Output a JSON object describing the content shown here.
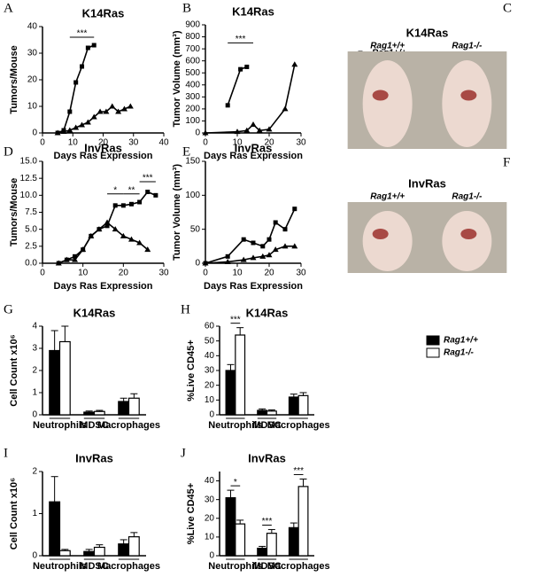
{
  "chart_data": [
    {
      "type": "line",
      "label": "A",
      "title": "K14Ras",
      "xlabel": "Days Ras Expression",
      "ylabel": "Tumors/Mouse",
      "xlim": [
        0,
        40
      ],
      "xticks": [
        0,
        10,
        20,
        30,
        40
      ],
      "ylim": [
        0,
        40
      ],
      "yticks": [
        0,
        10,
        20,
        30,
        40
      ],
      "annotations": [
        "***"
      ],
      "series": [
        {
          "name": "Rag1+/+",
          "marker": "square",
          "color": "#000000",
          "x": [
            5,
            7,
            9,
            11,
            13,
            15,
            17
          ],
          "values": [
            0,
            1,
            8,
            19,
            25,
            32,
            33
          ]
        },
        {
          "name": "Rag1-/-",
          "marker": "triangle",
          "color": "#000000",
          "x": [
            5,
            7,
            9,
            11,
            13,
            15,
            17,
            19,
            21,
            23,
            25,
            27,
            29
          ],
          "values": [
            0,
            0.5,
            1,
            2,
            3,
            4,
            6,
            8,
            8,
            10,
            8,
            9,
            10
          ]
        }
      ]
    },
    {
      "type": "line",
      "label": "B",
      "title": "K14Ras",
      "xlabel": "Days Ras Expression",
      "ylabel": "Tumor Volume (mm³)",
      "legend": true,
      "xlim": [
        0,
        30
      ],
      "xticks": [
        0,
        10,
        20,
        30
      ],
      "ylim": [
        0,
        900
      ],
      "yticks": [
        0,
        100,
        200,
        300,
        400,
        500,
        600,
        700,
        800,
        900
      ],
      "annotations": [
        "***"
      ],
      "series": [
        {
          "name": "Rag1+/+",
          "marker": "square",
          "color": "#000000",
          "x": [
            7,
            11,
            13
          ],
          "values": [
            230,
            530,
            550
          ]
        },
        {
          "name": "Rag1-/-",
          "marker": "triangle",
          "color": "#000000",
          "x": [
            0,
            10,
            13,
            15,
            17,
            20,
            25,
            28
          ],
          "values": [
            0,
            10,
            20,
            70,
            20,
            30,
            200,
            570
          ]
        }
      ]
    },
    {
      "type": "image",
      "label": "C",
      "title": "K14Ras",
      "columns": [
        "Rag1+/+",
        "Rag1-/-"
      ]
    },
    {
      "type": "line",
      "label": "D",
      "title": "InvRas",
      "xlabel": "Days Ras Expression",
      "ylabel": "Tumors/Mouse",
      "xlim": [
        0,
        30
      ],
      "xticks": [
        0,
        10,
        20,
        30
      ],
      "ylim": [
        0,
        15
      ],
      "yticks": [
        {
          "value": 0,
          "label": "0.0"
        },
        2.5,
        {
          "value": 5,
          "label": "5.0"
        },
        7.5,
        {
          "value": 10,
          "label": "10.0"
        },
        12.5,
        {
          "value": 15,
          "label": "15.0"
        }
      ],
      "annotations": [
        "*",
        "**",
        "***"
      ],
      "series": [
        {
          "name": "Rag1+/+",
          "marker": "square",
          "color": "#000000",
          "x": [
            4,
            6,
            8,
            10,
            12,
            14,
            16,
            18,
            20,
            22,
            24,
            26,
            28
          ],
          "values": [
            0,
            0.5,
            1,
            2,
            4,
            5,
            5.5,
            8.5,
            8.5,
            8.7,
            9,
            10.5,
            10
          ]
        },
        {
          "name": "Rag1-/-",
          "marker": "triangle",
          "color": "#000000",
          "x": [
            4,
            6,
            8,
            10,
            12,
            14,
            16,
            18,
            20,
            22,
            24,
            26
          ],
          "values": [
            0,
            0.5,
            0.5,
            2,
            4,
            5,
            6,
            5,
            4,
            3.5,
            3,
            2
          ]
        }
      ]
    },
    {
      "type": "line",
      "label": "E",
      "title": "InvRas",
      "xlabel": "Days Ras Expression",
      "ylabel": "Tumor Volume (mm³)",
      "xlim": [
        0,
        30
      ],
      "xticks": [
        0,
        10,
        20,
        30
      ],
      "ylim": [
        0,
        150
      ],
      "yticks": [
        0,
        50,
        100,
        150
      ],
      "series": [
        {
          "name": "Rag1+/+",
          "marker": "square",
          "color": "#000000",
          "x": [
            0,
            7,
            12,
            15,
            18,
            20,
            22,
            25,
            28
          ],
          "values": [
            0,
            10,
            35,
            30,
            25,
            35,
            60,
            50,
            80
          ]
        },
        {
          "name": "Rag1-/-",
          "marker": "triangle",
          "color": "#000000",
          "x": [
            0,
            7,
            12,
            15,
            18,
            20,
            22,
            25,
            28
          ],
          "values": [
            0,
            2,
            5,
            8,
            10,
            12,
            20,
            25,
            25
          ]
        }
      ]
    },
    {
      "type": "image",
      "label": "F",
      "title": "InvRas",
      "columns": [
        "Rag1+/+",
        "Rag1-/-"
      ]
    },
    {
      "type": "bar",
      "label": "G",
      "title": "K14Ras",
      "ylabel": "Cell Count x10⁶",
      "categories": [
        "Neutrophils",
        "MDSC",
        "Macrophages"
      ],
      "ylim": [
        0,
        4
      ],
      "yticks": [
        0,
        1,
        2,
        3,
        4
      ],
      "series": [
        {
          "name": "Rag1+/+",
          "color": "#000000",
          "values": [
            2.9,
            0.12,
            0.6
          ],
          "errors": [
            0.9,
            0.05,
            0.15
          ]
        },
        {
          "name": "Rag1-/-",
          "color": "#ffffff",
          "values": [
            3.3,
            0.15,
            0.75
          ],
          "errors": [
            0.7,
            0.05,
            0.2
          ]
        }
      ]
    },
    {
      "type": "bar",
      "label": "H",
      "title": "K14Ras",
      "ylabel": "%Live CD45+",
      "categories": [
        "Neutrophils",
        "MDSC",
        "Macrophages"
      ],
      "legend": true,
      "ylim": [
        0,
        60
      ],
      "yticks": [
        0,
        10,
        20,
        30,
        40,
        50,
        60
      ],
      "annotations": [
        "***"
      ],
      "series": [
        {
          "name": "Rag1+/+",
          "color": "#000000",
          "values": [
            30,
            3,
            12
          ],
          "errors": [
            4,
            1,
            2
          ]
        },
        {
          "name": "Rag1-/-",
          "color": "#ffffff",
          "values": [
            54,
            2.5,
            13
          ],
          "errors": [
            5,
            0.8,
            2
          ]
        }
      ]
    },
    {
      "type": "bar",
      "label": "I",
      "title": "InvRas",
      "ylabel": "Cell Count x10⁶",
      "categories": [
        "Neutrophils",
        "MDSC",
        "Macrophages"
      ],
      "ylim": [
        0,
        2
      ],
      "yticks": [
        0,
        1,
        2
      ],
      "series": [
        {
          "name": "Rag1+/+",
          "color": "#000000",
          "values": [
            1.28,
            0.1,
            0.28
          ],
          "errors": [
            0.6,
            0.05,
            0.1
          ]
        },
        {
          "name": "Rag1-/-",
          "color": "#ffffff",
          "values": [
            0.12,
            0.2,
            0.45
          ],
          "errors": [
            0.03,
            0.06,
            0.1
          ]
        }
      ]
    },
    {
      "type": "bar",
      "label": "J",
      "title": "InvRas",
      "ylabel": "%Live CD45+",
      "categories": [
        "Neutrophils",
        "MDSC",
        "Macrophages"
      ],
      "ylim": [
        0,
        45
      ],
      "yticks": [
        0,
        10,
        20,
        30,
        40
      ],
      "annotations": [
        "*",
        "***",
        "***"
      ],
      "series": [
        {
          "name": "Rag1+/+",
          "color": "#000000",
          "values": [
            31,
            4,
            15
          ],
          "errors": [
            4,
            1,
            2.5
          ]
        },
        {
          "name": "Rag1-/-",
          "color": "#ffffff",
          "values": [
            17,
            12,
            37
          ],
          "errors": [
            2,
            2,
            4
          ]
        }
      ]
    }
  ]
}
